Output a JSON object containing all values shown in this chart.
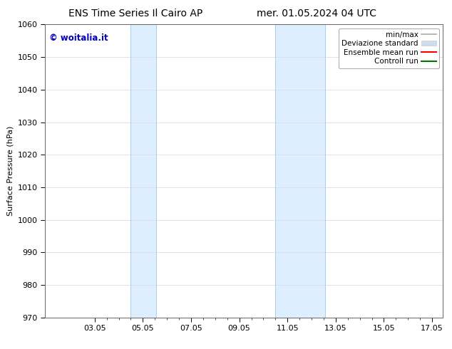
{
  "title_left": "ENS Time Series Il Cairo AP",
  "title_right": "mer. 01.05.2024 04 UTC",
  "ylabel": "Surface Pressure (hPa)",
  "xlim": [
    1.0,
    17.5
  ],
  "ylim": [
    970,
    1060
  ],
  "yticks": [
    970,
    980,
    990,
    1000,
    1010,
    1020,
    1030,
    1040,
    1050,
    1060
  ],
  "xtick_labels": [
    "03.05",
    "05.05",
    "07.05",
    "09.05",
    "11.05",
    "13.05",
    "15.05",
    "17.05"
  ],
  "xtick_positions": [
    3.05,
    5.05,
    7.05,
    9.05,
    11.05,
    13.05,
    15.05,
    17.05
  ],
  "shaded_bands": [
    {
      "xmin": 4.55,
      "xmax": 5.6
    },
    {
      "xmin": 10.55,
      "xmax": 12.6
    }
  ],
  "band_color": "#ddeeff",
  "band_edge_color": "#aaccee",
  "watermark_text": "© woitalia.it",
  "watermark_color": "#0000bb",
  "legend_entries": [
    {
      "label": "min/max",
      "color": "#aaaaaa",
      "lw": 1.2
    },
    {
      "label": "Deviazione standard",
      "color": "#ccddee",
      "lw": 6
    },
    {
      "label": "Ensemble mean run",
      "color": "#ff0000",
      "lw": 1.5
    },
    {
      "label": "Controll run",
      "color": "#007700",
      "lw": 1.5
    }
  ],
  "bg_color": "#ffffff",
  "grid_color": "#dddddd",
  "title_fontsize": 10,
  "axis_fontsize": 8,
  "tick_fontsize": 8,
  "legend_fontsize": 7.5
}
